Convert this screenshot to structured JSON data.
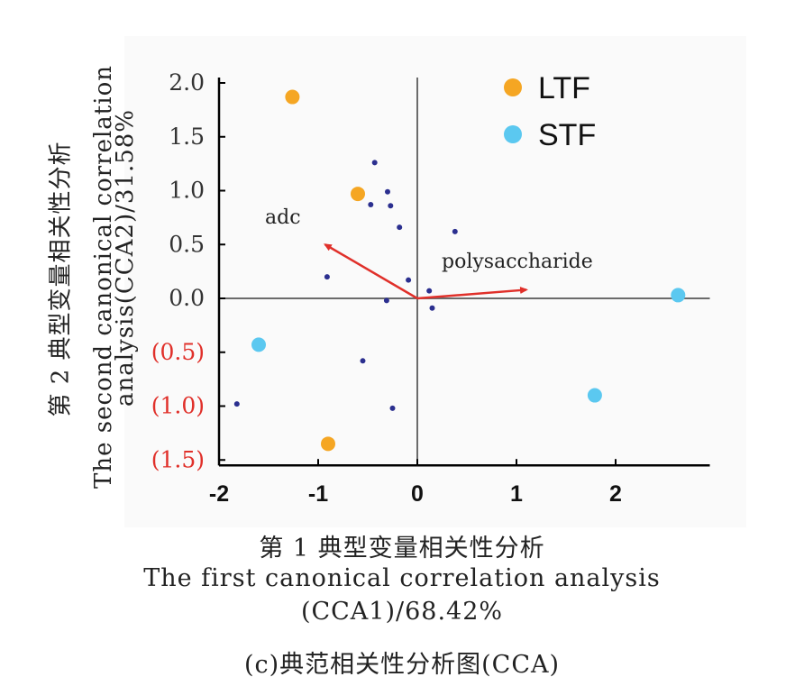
{
  "chart_data": {
    "type": "scatter",
    "xlabel_cn": "第 1 典型变量相关性分析",
    "xlabel_en": "The first canonical correlation analysis",
    "xlabel_pct": "(CCA1)/68.42%",
    "ylabel_cn": "第 2 典型变量相关性分析",
    "ylabel_en": "The second canonical correlation",
    "ylabel_pct": "analysis(CCA2)/31.58%",
    "caption": "(c)典范相关性分析图(CCA)",
    "x_ticks": [
      "-2",
      "-1",
      "0",
      "1",
      "2"
    ],
    "x_tick_values": [
      -2,
      -1,
      0,
      1,
      2
    ],
    "y_ticks": [
      {
        "value": 2.0,
        "label": "2.0",
        "color": "#333333"
      },
      {
        "value": 1.5,
        "label": "1.5",
        "color": "#333333"
      },
      {
        "value": 1.0,
        "label": "1.0",
        "color": "#333333"
      },
      {
        "value": 0.5,
        "label": "0.5",
        "color": "#333333"
      },
      {
        "value": 0.0,
        "label": "0.0",
        "color": "#333333"
      },
      {
        "value": -0.5,
        "label": "(0.5)",
        "color": "#e0302a"
      },
      {
        "value": -1.0,
        "label": "(1.0)",
        "color": "#e0302a"
      },
      {
        "value": -1.5,
        "label": "(1.5)",
        "color": "#e0302a"
      }
    ],
    "xlim": [
      -2.0,
      2.95
    ],
    "ylim": [
      -1.55,
      2.05
    ],
    "legend": [
      {
        "name": "LTF",
        "color": "#f5a623"
      },
      {
        "name": "STF",
        "color": "#5bc8f0"
      }
    ],
    "legend_position": "top-right",
    "series": [
      {
        "name": "LTF",
        "color": "#f5a623",
        "points": [
          {
            "x": -1.26,
            "y": 1.87
          },
          {
            "x": -0.6,
            "y": 0.97
          },
          {
            "x": -0.9,
            "y": -1.35
          }
        ]
      },
      {
        "name": "STF",
        "color": "#5bc8f0",
        "points": [
          {
            "x": -1.6,
            "y": -0.43
          },
          {
            "x": 2.63,
            "y": 0.03
          },
          {
            "x": 1.79,
            "y": -0.9
          }
        ]
      },
      {
        "color": "#2b2f8f",
        "points": [
          {
            "x": -0.43,
            "y": 1.26
          },
          {
            "x": -0.3,
            "y": 0.99
          },
          {
            "x": -0.47,
            "y": 0.87
          },
          {
            "x": -0.27,
            "y": 0.86
          },
          {
            "x": -0.18,
            "y": 0.66
          },
          {
            "x": 0.38,
            "y": 0.62
          },
          {
            "x": -0.91,
            "y": 0.2
          },
          {
            "x": -0.09,
            "y": 0.17
          },
          {
            "x": 0.12,
            "y": 0.07
          },
          {
            "x": -0.31,
            "y": -0.02
          },
          {
            "x": 0.15,
            "y": -0.09
          },
          {
            "x": -0.55,
            "y": -0.58
          },
          {
            "x": -1.82,
            "y": -0.98
          },
          {
            "x": -0.25,
            "y": -1.02
          }
        ]
      }
    ],
    "vectors": [
      {
        "label": "adc",
        "x": -0.93,
        "y": 0.5,
        "color": "#e0302a"
      },
      {
        "label": "polysaccharide",
        "x": 1.1,
        "y": 0.08,
        "color": "#e0302a"
      }
    ],
    "grid": false
  }
}
